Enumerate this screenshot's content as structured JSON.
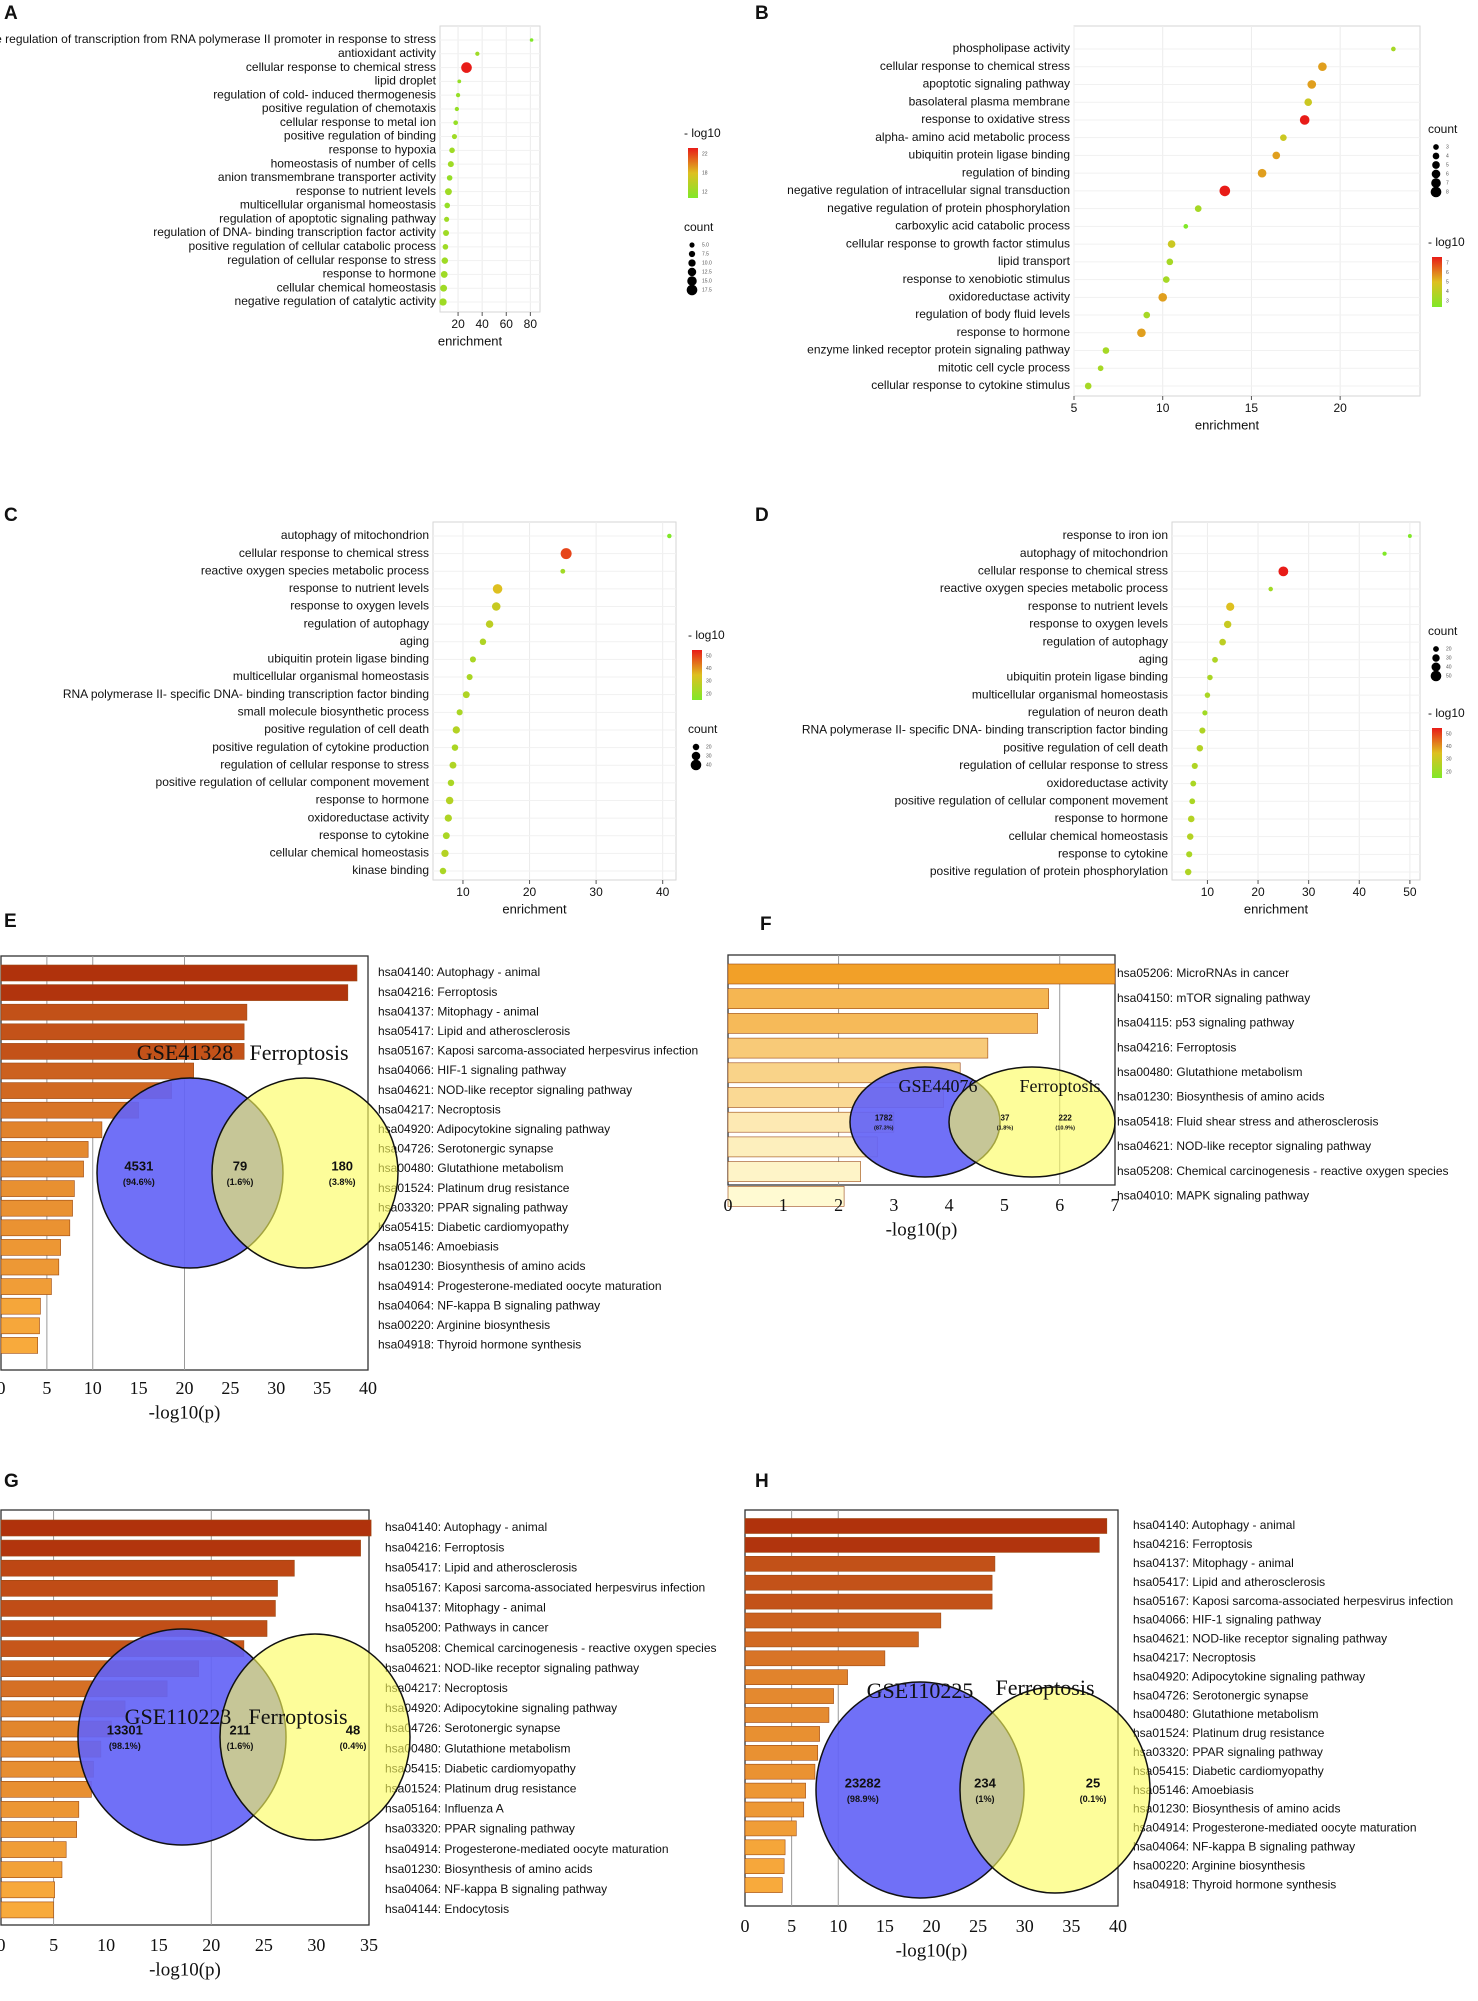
{
  "title": "Functional enrichment analyses (GO dot plots and KEGG bar charts with Venn diagrams)",
  "chart_data": [
    {
      "panel": "A",
      "type": "scatter",
      "terms": [
        "positive regulation of transcription from RNA polymerase II promoter in response to stress",
        "antioxidant activity",
        "cellular response to chemical stress",
        "lipid droplet",
        "regulation of cold- induced thermogenesis",
        "positive regulation of chemotaxis",
        "cellular response to metal ion",
        "positive regulation of binding",
        "response to hypoxia",
        "homeostasis of number of cells",
        "anion transmembrane transporter activity",
        "response to nutrient levels",
        "multicellular organismal homeostasis",
        "regulation of apoptotic signaling pathway",
        "regulation of DNA- binding transcription factor activity",
        "positive regulation of cellular catabolic process",
        "regulation of cellular response to stress",
        "response to hormone",
        "cellular chemical homeostasis",
        "negative regulation of catalytic activity"
      ],
      "enrichment": [
        81,
        36,
        27,
        21,
        20,
        19,
        18,
        17,
        15,
        14,
        13,
        12,
        11,
        10.5,
        10,
        9.5,
        9,
        8.5,
        8,
        7.5
      ],
      "count": [
        1,
        3,
        17.5,
        2,
        3,
        3,
        4,
        5,
        6,
        7,
        6,
        9,
        6,
        5,
        7,
        6,
        8,
        9,
        9,
        10
      ],
      "neglog10": [
        6,
        9,
        24,
        8,
        8,
        8,
        8,
        9,
        9,
        9,
        8,
        9,
        8,
        9,
        9,
        9,
        9,
        9,
        9,
        9
      ],
      "xlim": [
        5,
        88
      ],
      "xticks": [
        20,
        40,
        60,
        80
      ],
      "xlabel": "enrichment",
      "color_legend_title": "- log10",
      "color_legend_ticks": [
        "22",
        "18",
        "12"
      ],
      "color_legend_range": [
        6,
        24
      ],
      "size_legend_title": "count",
      "size_legend_ticks": [
        "5.0",
        "7.5",
        "10.0",
        "12.5",
        "15.0",
        "17.5"
      ],
      "size_legend_values": [
        5,
        7.5,
        10,
        12.5,
        15,
        17.5
      ]
    },
    {
      "panel": "B",
      "type": "scatter",
      "terms": [
        "phospholipase activity",
        "cellular response to chemical stress",
        "apoptotic signaling pathway",
        "basolateral plasma membrane",
        "response to oxidative stress",
        "alpha- amino acid metabolic process",
        "ubiquitin protein ligase binding",
        "regulation of binding",
        "negative regulation of intracellular signal transduction",
        "negative regulation of protein phosphorylation",
        "carboxylic acid catabolic process",
        "cellular response to growth factor stimulus",
        "lipid transport",
        "response to xenobiotic stimulus",
        "oxidoreductase activity",
        "regulation of body fluid levels",
        "response to hormone",
        "enzyme linked receptor protein signaling pathway",
        "mitotic cell cycle process",
        "cellular response to cytokine stimulus"
      ],
      "enrichment": [
        23,
        19,
        18.4,
        18.2,
        18,
        16.8,
        16.4,
        15.6,
        13.5,
        12,
        11.3,
        10.5,
        10.4,
        10.2,
        10,
        9.1,
        8.8,
        6.8,
        6.5,
        5.8
      ],
      "count": [
        2,
        6,
        6,
        5,
        7,
        4,
        5,
        6,
        8,
        4,
        2,
        5,
        4,
        4,
        6,
        4,
        6,
        4,
        3,
        4
      ],
      "neglog10": [
        3,
        5,
        5,
        4,
        7,
        4,
        5,
        5,
        7,
        3,
        2,
        4,
        3,
        3,
        5,
        3,
        5,
        3,
        3,
        3
      ],
      "xlim": [
        5,
        24.5
      ],
      "xticks": [
        5,
        10,
        15,
        20
      ],
      "xlabel": "enrichment",
      "size_legend_title": "count",
      "size_legend_ticks": [
        "3",
        "4",
        "5",
        "6",
        "7",
        "8"
      ],
      "size_legend_values": [
        3,
        4,
        5,
        6,
        7,
        8
      ],
      "color_legend_title": "- log10",
      "color_legend_ticks": [
        "7",
        "6",
        "5",
        "4",
        "3"
      ],
      "color_legend_range": [
        2,
        7
      ]
    },
    {
      "panel": "C",
      "type": "scatter",
      "terms": [
        "autophagy of mitochondrion",
        "cellular response to chemical stress",
        "reactive oxygen species metabolic process",
        "response to nutrient levels",
        "response to oxygen levels",
        "regulation of autophagy",
        "aging",
        "ubiquitin protein ligase binding",
        "multicellular organismal homeostasis",
        "RNA polymerase II- specific DNA- binding transcription factor binding",
        "small molecule biosynthetic process",
        "positive regulation of cell death",
        "positive regulation of cytokine production",
        "regulation of cellular response to stress",
        "positive regulation of cellular component movement",
        "response to hormone",
        "oxidoreductase activity",
        "response to cytokine",
        "cellular chemical homeostasis",
        "kinase binding"
      ],
      "enrichment": [
        41,
        25.5,
        25,
        15.2,
        15,
        14,
        13,
        11.5,
        11,
        10.5,
        9.5,
        9,
        8.8,
        8.5,
        8.2,
        8,
        7.8,
        7.5,
        7.3,
        7
      ],
      "count": [
        10,
        45,
        12,
        35,
        30,
        25,
        20,
        18,
        18,
        22,
        18,
        24,
        20,
        22,
        20,
        25,
        24,
        22,
        24,
        20
      ],
      "neglog10": [
        12,
        50,
        22,
        35,
        30,
        28,
        25,
        24,
        24,
        25,
        24,
        26,
        24,
        25,
        24,
        26,
        25,
        24,
        26,
        24
      ],
      "xlim": [
        5.5,
        42
      ],
      "xticks": [
        10,
        20,
        30,
        40
      ],
      "xlabel": "enrichment",
      "color_legend_title": "- log10",
      "color_legend_ticks": [
        "50",
        "40",
        "30",
        "20"
      ],
      "color_legend_range": [
        15,
        55
      ],
      "size_legend_title": "count",
      "size_legend_ticks": [
        "20",
        "30",
        "40"
      ],
      "size_legend_values": [
        20,
        30,
        40
      ]
    },
    {
      "panel": "D",
      "type": "scatter",
      "terms": [
        "response to iron ion",
        "autophagy of mitochondrion",
        "cellular response to chemical stress",
        "reactive oxygen species metabolic process",
        "response to nutrient levels",
        "response to oxygen levels",
        "regulation of autophagy",
        "aging",
        "ubiquitin protein ligase binding",
        "multicellular organismal homeostasis",
        "regulation of neuron death",
        "RNA polymerase II- specific DNA- binding transcription factor binding",
        "positive regulation of cell death",
        "regulation of cellular response to stress",
        "oxidoreductase activity",
        "positive regulation of cellular component movement",
        "response to hormone",
        "cellular chemical homeostasis",
        "response to cytokine",
        "positive regulation of protein phosphorylation"
      ],
      "enrichment": [
        50,
        45,
        25,
        22.5,
        14.5,
        14,
        13,
        11.5,
        10.5,
        10,
        9.5,
        9,
        8.5,
        7.5,
        7.2,
        7,
        6.8,
        6.6,
        6.4,
        6.2
      ],
      "count": [
        8,
        10,
        45,
        12,
        35,
        30,
        25,
        20,
        18,
        18,
        16,
        22,
        24,
        22,
        20,
        20,
        25,
        24,
        22,
        24
      ],
      "neglog10": [
        12,
        15,
        55,
        22,
        35,
        30,
        28,
        25,
        24,
        24,
        22,
        25,
        26,
        25,
        24,
        24,
        26,
        26,
        24,
        25
      ],
      "xlim": [
        3,
        52
      ],
      "xticks": [
        10,
        20,
        30,
        40,
        50
      ],
      "xlabel": "enrichment",
      "size_legend_title": "count",
      "size_legend_ticks": [
        "20",
        "30",
        "40",
        "50"
      ],
      "size_legend_values": [
        20,
        30,
        40,
        50
      ],
      "color_legend_title": "- log10",
      "color_legend_ticks": [
        "50",
        "40",
        "30",
        "20"
      ],
      "color_legend_range": [
        15,
        55
      ]
    },
    {
      "panel": "E",
      "type": "bar",
      "categories": [
        "hsa04140: Autophagy - animal",
        "hsa04216: Ferroptosis",
        "hsa04137: Mitophagy - animal",
        "hsa05417: Lipid and atherosclerosis",
        "hsa05167: Kaposi sarcoma-associated herpesvirus infection",
        "hsa04066: HIF-1 signaling pathway",
        "hsa04621: NOD-like receptor signaling pathway",
        "hsa04217: Necroptosis",
        "hsa04920: Adipocytokine signaling pathway",
        "hsa04726: Serotonergic synapse",
        "hsa00480: Glutathione metabolism",
        "hsa01524: Platinum drug resistance",
        "hsa03320: PPAR signaling pathway",
        "hsa05415: Diabetic cardiomyopathy",
        "hsa05146: Amoebiasis",
        "hsa01230: Biosynthesis of amino acids",
        "hsa04914: Progesterone-mediated oocyte maturation",
        "hsa04064: NF-kappa B signaling pathway",
        "hsa00220: Arginine biosynthesis",
        "hsa04918: Thyroid hormone synthesis"
      ],
      "values": [
        38.8,
        37.8,
        26.8,
        26.5,
        26.5,
        21,
        18.6,
        15,
        11,
        9.5,
        9,
        8,
        7.8,
        7.5,
        6.5,
        6.3,
        5.5,
        4.3,
        4.2,
        4
      ],
      "xlim": [
        0,
        40
      ],
      "xticks": [
        0,
        5,
        10,
        15,
        20,
        25,
        30,
        35,
        40
      ],
      "xlabel": "-log10(p)",
      "venn": {
        "left_name": "GSE41328",
        "right_name": "Ferroptosis",
        "left_count": "4531",
        "left_pct": "(94.6%)",
        "overlap_count": "79",
        "overlap_pct": "(1.6%)",
        "right_count": "180",
        "right_pct": "(3.8%)"
      }
    },
    {
      "panel": "F",
      "type": "bar",
      "categories": [
        "hsa05206: MicroRNAs in cancer",
        "hsa04150: mTOR signaling pathway",
        "hsa04115: p53 signaling pathway",
        "hsa04216: Ferroptosis",
        "hsa00480: Glutathione metabolism",
        "hsa01230: Biosynthesis of amino acids",
        "hsa05418: Fluid shear stress and atherosclerosis",
        "hsa04621: NOD-like receptor signaling pathway",
        "hsa05208: Chemical carcinogenesis - reactive oxygen species",
        "hsa04010: MAPK signaling pathway"
      ],
      "values": [
        7.0,
        5.8,
        5.6,
        4.7,
        4.2,
        3.9,
        3.0,
        2.7,
        2.4,
        2.1
      ],
      "xlim": [
        0,
        7
      ],
      "xticks": [
        0,
        1,
        2,
        3,
        4,
        5,
        6,
        7
      ],
      "xlabel": "-log10(p)",
      "venn": {
        "left_name": "GSE44076",
        "right_name": "Ferroptosis",
        "left_count": "1782",
        "left_pct": "(87.3%)",
        "overlap_count": "37",
        "overlap_pct": "(1.8%)",
        "right_count": "222",
        "right_pct": "(10.9%)"
      }
    },
    {
      "panel": "G",
      "type": "bar",
      "categories": [
        "hsa04140: Autophagy - animal",
        "hsa04216: Ferroptosis",
        "hsa05417: Lipid and atherosclerosis",
        "hsa05167: Kaposi sarcoma-associated herpesvirus infection",
        "hsa04137: Mitophagy - animal",
        "hsa05200: Pathways in cancer",
        "hsa05208: Chemical carcinogenesis - reactive oxygen species",
        "hsa04621: NOD-like receptor signaling pathway",
        "hsa04217: Necroptosis",
        "hsa04920: Adipocytokine signaling pathway",
        "hsa04726: Serotonergic synapse",
        "hsa00480: Glutathione metabolism",
        "hsa05415: Diabetic cardiomyopathy",
        "hsa01524: Platinum drug resistance",
        "hsa05164: Influenza A",
        "hsa03320: PPAR signaling pathway",
        "hsa04914: Progesterone-mediated oocyte maturation",
        "hsa01230: Biosynthesis of amino acids",
        "hsa04064: NF-kappa B signaling pathway",
        "hsa04144: Endocytosis"
      ],
      "values": [
        35.2,
        34.2,
        27.9,
        26.3,
        26.1,
        25.3,
        23.1,
        18.8,
        15.8,
        11.8,
        10.5,
        9.5,
        8.8,
        8.6,
        7.4,
        7.2,
        6.2,
        5.8,
        5.1,
        5
      ],
      "xlim": [
        0,
        35
      ],
      "xticks": [
        0,
        5,
        10,
        15,
        20,
        25,
        30,
        35
      ],
      "xlabel": "-log10(p)",
      "venn": {
        "left_name": "GSE110223",
        "right_name": "Ferroptosis",
        "left_count": "13301",
        "left_pct": "(98.1%)",
        "overlap_count": "211",
        "overlap_pct": "(1.6%)",
        "right_count": "48",
        "right_pct": "(0.4%)"
      }
    },
    {
      "panel": "H",
      "type": "bar",
      "categories": [
        "hsa04140: Autophagy - animal",
        "hsa04216: Ferroptosis",
        "hsa04137: Mitophagy - animal",
        "hsa05417: Lipid and atherosclerosis",
        "hsa05167: Kaposi sarcoma-associated herpesvirus infection",
        "hsa04066: HIF-1 signaling pathway",
        "hsa04621: NOD-like receptor signaling pathway",
        "hsa04217: Necroptosis",
        "hsa04920: Adipocytokine signaling pathway",
        "hsa04726: Serotonergic synapse",
        "hsa00480: Glutathione metabolism",
        "hsa01524: Platinum drug resistance",
        "hsa03320: PPAR signaling pathway",
        "hsa05415: Diabetic cardiomyopathy",
        "hsa05146: Amoebiasis",
        "hsa01230: Biosynthesis of amino acids",
        "hsa04914: Progesterone-mediated oocyte maturation",
        "hsa04064: NF-kappa B signaling pathway",
        "hsa00220: Arginine biosynthesis",
        "hsa04918: Thyroid hormone synthesis"
      ],
      "values": [
        38.8,
        38,
        26.8,
        26.5,
        26.5,
        21,
        18.6,
        15,
        11,
        9.5,
        9,
        8,
        7.8,
        7.5,
        6.5,
        6.3,
        5.5,
        4.3,
        4.2,
        4
      ],
      "xlim": [
        0,
        40
      ],
      "xticks": [
        0,
        5,
        10,
        15,
        20,
        25,
        30,
        35,
        40
      ],
      "xlabel": "-log10(p)",
      "venn": {
        "left_name": "GSE110225",
        "right_name": "Ferroptosis",
        "left_count": "23282",
        "left_pct": "(98.9%)",
        "overlap_count": "234",
        "overlap_pct": "(1%)",
        "right_count": "25",
        "right_pct": "(0.1%)"
      }
    }
  ]
}
